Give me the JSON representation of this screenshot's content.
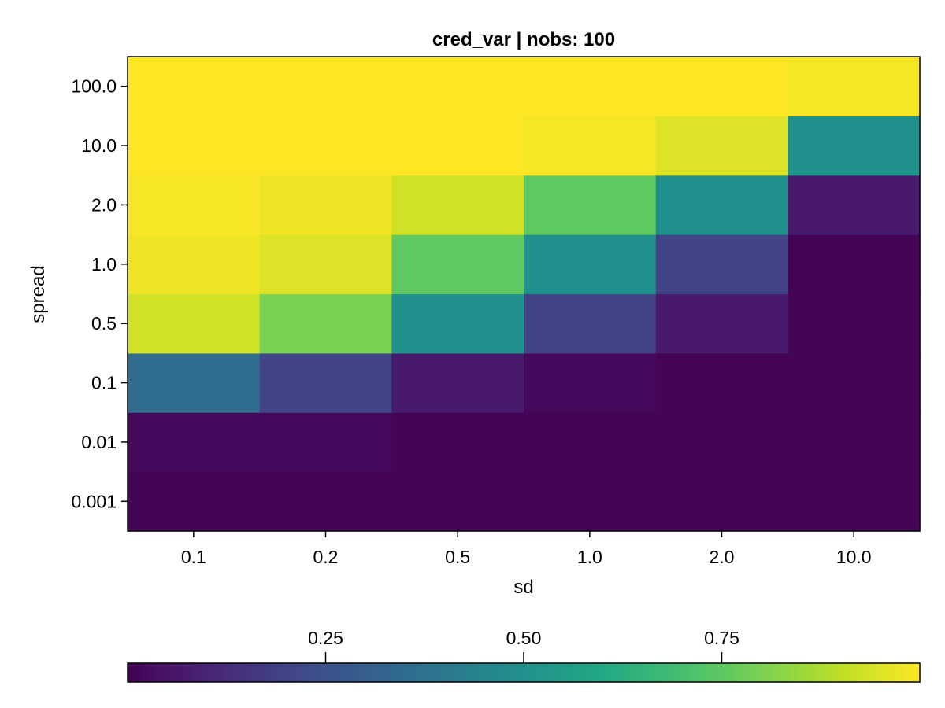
{
  "chart_data": {
    "type": "heatmap",
    "title": "cred_var | nobs: 100",
    "xlabel": "sd",
    "ylabel": "spread",
    "x_categories": [
      "0.1",
      "0.2",
      "0.5",
      "1.0",
      "2.0",
      "10.0"
    ],
    "y_categories": [
      "0.001",
      "0.01",
      "0.1",
      "0.5",
      "1.0",
      "2.0",
      "10.0",
      "100.0"
    ],
    "values": [
      [
        0.01,
        0.01,
        0.01,
        0.01,
        0.01,
        0.01
      ],
      [
        0.02,
        0.02,
        0.01,
        0.01,
        0.01,
        0.01
      ],
      [
        0.35,
        0.2,
        0.07,
        0.02,
        0.01,
        0.01
      ],
      [
        0.93,
        0.8,
        0.5,
        0.2,
        0.07,
        0.01
      ],
      [
        0.98,
        0.95,
        0.75,
        0.5,
        0.2,
        0.01
      ],
      [
        0.99,
        0.98,
        0.93,
        0.75,
        0.5,
        0.07
      ],
      [
        1.0,
        1.0,
        1.0,
        0.99,
        0.95,
        0.5
      ],
      [
        1.0,
        1.0,
        1.0,
        1.0,
        1.0,
        0.99
      ]
    ],
    "colormap": "viridis",
    "colorbar": {
      "range": [
        0.0,
        1.0
      ],
      "ticks": [
        0.25,
        0.5,
        0.75
      ],
      "tick_labels": [
        "0.25",
        "0.50",
        "0.75"
      ],
      "placement": "bottom"
    }
  }
}
